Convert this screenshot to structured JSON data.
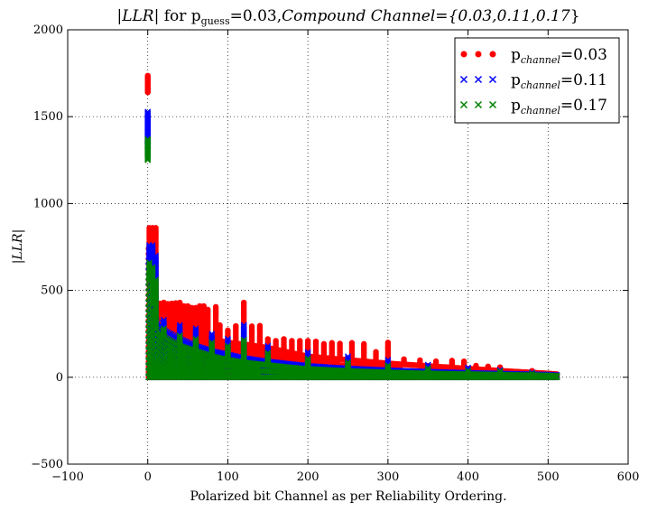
{
  "chart_data": {
    "type": "scatter",
    "title": {
      "abs_open": "|",
      "llr_word": "LLR",
      "abs_close": "| for p",
      "guess_sub": "guess",
      "mid": "=0.03,",
      "compound": "Compound Channel={",
      "values": "0.03,0.11,0.17",
      "close": "}"
    },
    "xlabel": "Polarized bit Channel as per Reliability Ordering.",
    "ylabel": "|LLR|",
    "xlim": [
      -100,
      600
    ],
    "ylim": [
      -500,
      2000
    ],
    "xticks": [
      "−100",
      "0",
      "100",
      "200",
      "300",
      "400",
      "500",
      "600"
    ],
    "xtick_values": [
      -100,
      0,
      100,
      200,
      300,
      400,
      500,
      600
    ],
    "yticks": [
      "−500",
      "0",
      "500",
      "1000",
      "1500",
      "2000"
    ],
    "ytick_values": [
      -500,
      0,
      500,
      1000,
      1500,
      2000
    ],
    "grid": true,
    "legend_position": "top-right",
    "legend_prefix": "p",
    "legend_sub": "channel",
    "series": [
      {
        "name": "0.03",
        "marker": "circle",
        "color": "#ff0000",
        "x_range": [
          0,
          511
        ],
        "index0": [
          1640,
          1740
        ],
        "first_dense": [
          [
            0,
            780
          ],
          [
            2,
            700
          ],
          [
            5,
            560
          ],
          [
            8,
            440
          ],
          [
            10,
            380
          ],
          [
            20,
            330
          ],
          [
            40,
            300
          ],
          [
            60,
            260
          ],
          [
            80,
            220
          ],
          [
            100,
            200
          ],
          [
            120,
            190
          ],
          [
            150,
            170
          ],
          [
            180,
            140
          ],
          [
            200,
            120
          ],
          [
            250,
            100
          ],
          [
            300,
            80
          ],
          [
            350,
            65
          ],
          [
            400,
            50
          ],
          [
            450,
            35
          ],
          [
            500,
            22
          ],
          [
            511,
            18
          ]
        ],
        "floor": 0,
        "spikes": [
          [
            2,
            860
          ],
          [
            6,
            860
          ],
          [
            10,
            860
          ],
          [
            15,
            430
          ],
          [
            20,
            430
          ],
          [
            25,
            430
          ],
          [
            30,
            430
          ],
          [
            35,
            430
          ],
          [
            40,
            430
          ],
          [
            45,
            410
          ],
          [
            50,
            410
          ],
          [
            55,
            400
          ],
          [
            60,
            400
          ],
          [
            65,
            410
          ],
          [
            70,
            410
          ],
          [
            75,
            390
          ],
          [
            85,
            410
          ],
          [
            90,
            300
          ],
          [
            100,
            270
          ],
          [
            110,
            300
          ],
          [
            120,
            430
          ],
          [
            130,
            300
          ],
          [
            140,
            300
          ],
          [
            150,
            220
          ],
          [
            160,
            210
          ],
          [
            170,
            220
          ],
          [
            180,
            210
          ],
          [
            190,
            210
          ],
          [
            200,
            210
          ],
          [
            210,
            210
          ],
          [
            220,
            200
          ],
          [
            230,
            200
          ],
          [
            240,
            200
          ],
          [
            255,
            200
          ],
          [
            270,
            200
          ],
          [
            285,
            150
          ],
          [
            300,
            200
          ],
          [
            320,
            110
          ],
          [
            340,
            100
          ],
          [
            360,
            100
          ],
          [
            380,
            100
          ],
          [
            395,
            100
          ],
          [
            410,
            70
          ],
          [
            425,
            70
          ],
          [
            440,
            60
          ],
          [
            480,
            40
          ]
        ]
      },
      {
        "name": "0.11",
        "marker": "x",
        "color": "#0000ff",
        "x_range": [
          0,
          511
        ],
        "index0": [
          1330,
          1530
        ],
        "first_dense": [
          [
            0,
            700
          ],
          [
            2,
            640
          ],
          [
            5,
            520
          ],
          [
            8,
            400
          ],
          [
            10,
            330
          ],
          [
            20,
            270
          ],
          [
            40,
            220
          ],
          [
            60,
            180
          ],
          [
            80,
            150
          ],
          [
            100,
            130
          ],
          [
            120,
            110
          ],
          [
            150,
            90
          ],
          [
            180,
            75
          ],
          [
            200,
            65
          ],
          [
            250,
            50
          ],
          [
            300,
            40
          ],
          [
            350,
            32
          ],
          [
            400,
            25
          ],
          [
            450,
            20
          ],
          [
            500,
            15
          ],
          [
            511,
            12
          ]
        ],
        "floor": 0,
        "spikes": [
          [
            2,
            760
          ],
          [
            6,
            760
          ],
          [
            10,
            700
          ],
          [
            20,
            330
          ],
          [
            40,
            300
          ],
          [
            60,
            280
          ],
          [
            80,
            250
          ],
          [
            100,
            220
          ],
          [
            120,
            300
          ],
          [
            150,
            180
          ],
          [
            200,
            150
          ],
          [
            250,
            120
          ],
          [
            300,
            100
          ],
          [
            350,
            80
          ],
          [
            400,
            60
          ],
          [
            440,
            50
          ],
          [
            480,
            35
          ]
        ]
      },
      {
        "name": "0.17",
        "marker": "x",
        "color": "#008000",
        "x_range": [
          0,
          511
        ],
        "index0": [
          1250,
          1370
        ],
        "first_dense": [
          [
            0,
            600
          ],
          [
            2,
            560
          ],
          [
            5,
            450
          ],
          [
            8,
            340
          ],
          [
            10,
            280
          ],
          [
            20,
            230
          ],
          [
            40,
            180
          ],
          [
            60,
            150
          ],
          [
            80,
            120
          ],
          [
            100,
            100
          ],
          [
            120,
            85
          ],
          [
            150,
            70
          ],
          [
            180,
            55
          ],
          [
            200,
            48
          ],
          [
            250,
            36
          ],
          [
            300,
            28
          ],
          [
            350,
            22
          ],
          [
            400,
            18
          ],
          [
            450,
            14
          ],
          [
            500,
            10
          ],
          [
            511,
            8
          ]
        ],
        "floor": 0,
        "spikes": [
          [
            2,
            660
          ],
          [
            6,
            640
          ],
          [
            10,
            560
          ],
          [
            20,
            280
          ],
          [
            40,
            240
          ],
          [
            60,
            220
          ],
          [
            80,
            200
          ],
          [
            100,
            180
          ],
          [
            120,
            220
          ],
          [
            150,
            140
          ],
          [
            200,
            110
          ],
          [
            250,
            90
          ],
          [
            300,
            70
          ],
          [
            350,
            55
          ],
          [
            400,
            45
          ],
          [
            440,
            40
          ],
          [
            480,
            30
          ]
        ]
      }
    ]
  }
}
